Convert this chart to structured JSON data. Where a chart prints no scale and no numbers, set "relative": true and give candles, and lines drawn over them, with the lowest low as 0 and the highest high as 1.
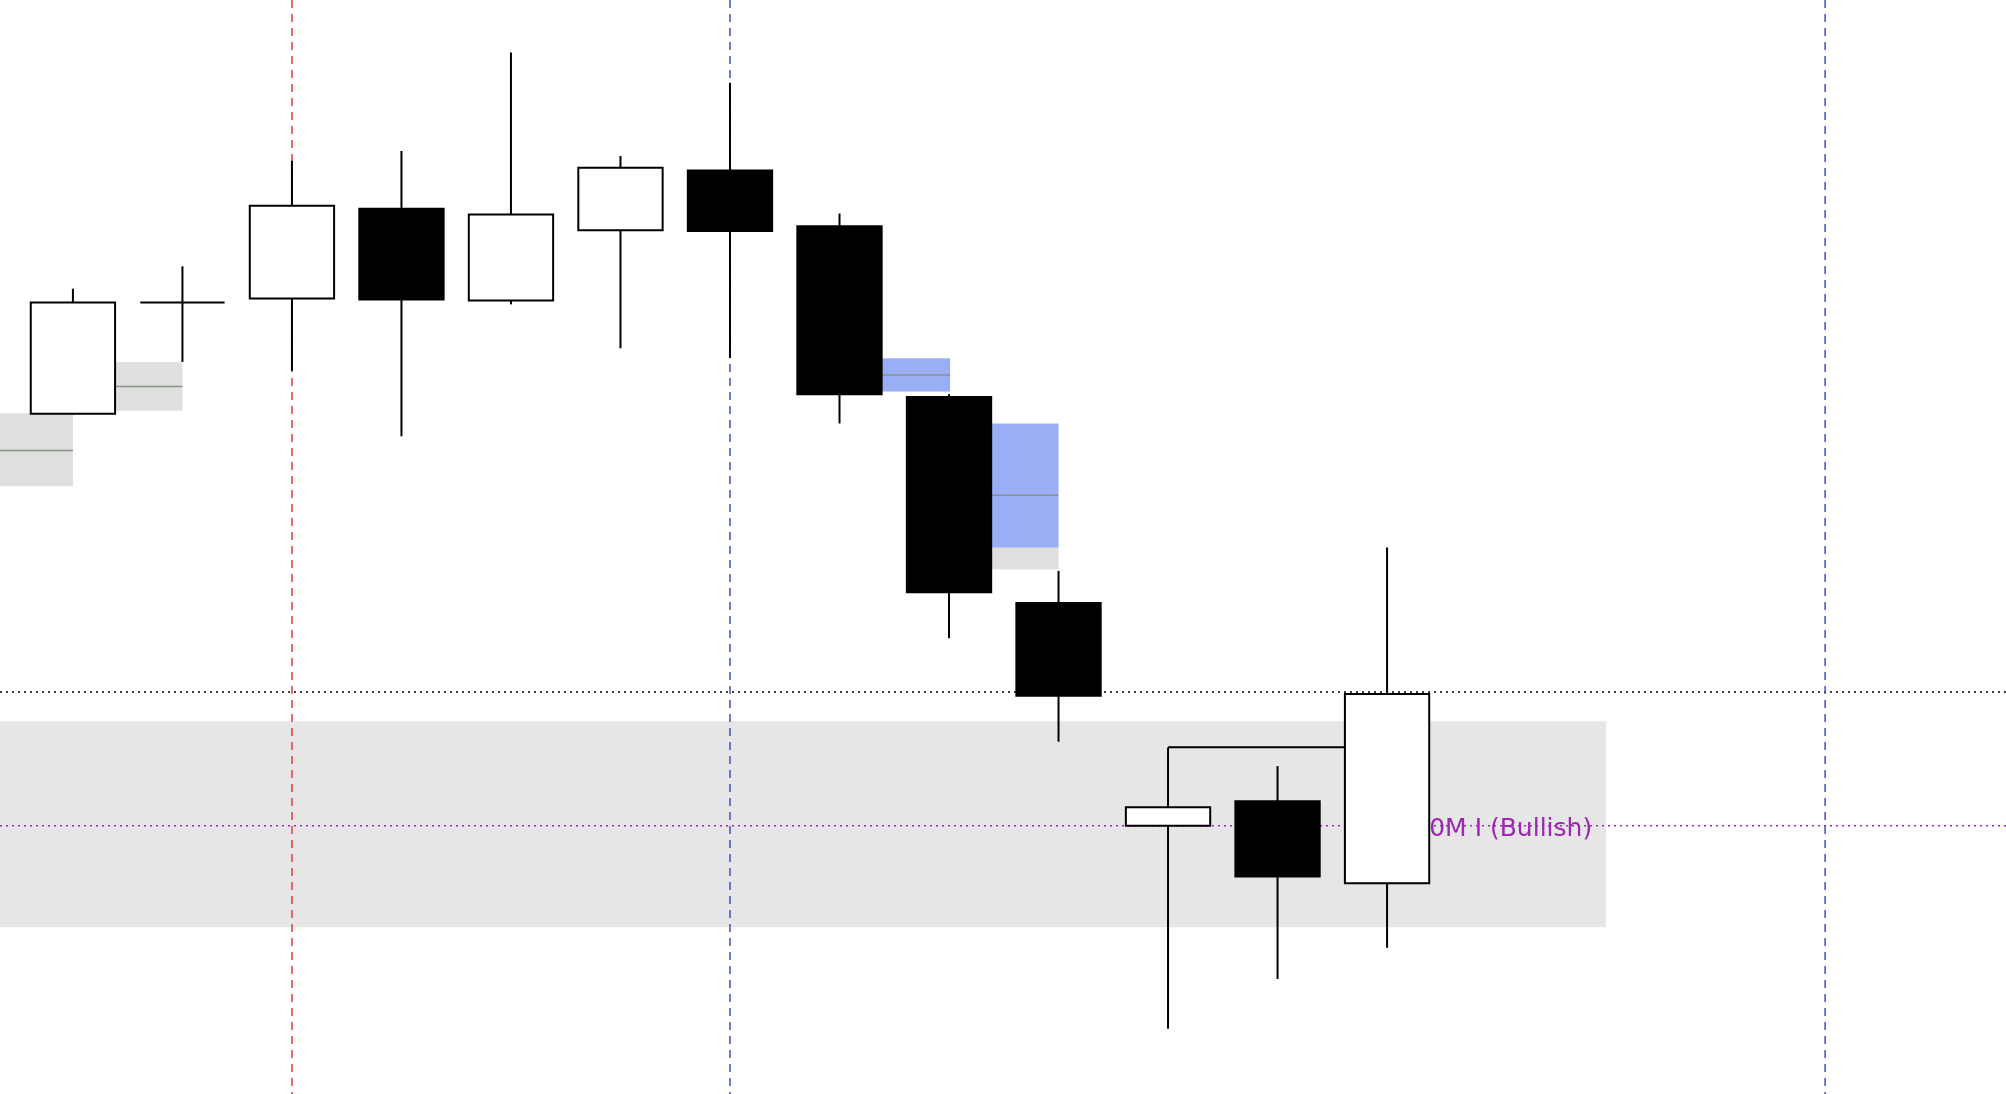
{
  "chart_data": {
    "type": "candlestick",
    "relative": true,
    "categories": [
      null,
      null,
      null,
      null,
      null,
      null,
      null,
      null,
      null,
      null,
      null,
      null,
      null
    ],
    "ohlc": [
      [
        0.63,
        0.758,
        0.63,
        0.744
      ],
      [
        0.744,
        0.781,
        0.683,
        0.744
      ],
      [
        0.748,
        0.889,
        0.674,
        0.843
      ],
      [
        0.84,
        0.899,
        0.607,
        0.747
      ],
      [
        0.746,
        1.0,
        0.742,
        0.834
      ],
      [
        0.818,
        0.894,
        0.697,
        0.882
      ],
      [
        0.879,
        0.969,
        0.687,
        0.817
      ],
      [
        0.822,
        0.835,
        0.62,
        0.65
      ],
      [
        0.647,
        0.65,
        0.4,
        0.447
      ],
      [
        0.436,
        0.469,
        0.294,
        0.341
      ],
      [
        0.208,
        0.288,
        0.0,
        0.227
      ],
      [
        0.233,
        0.269,
        0.051,
        0.156
      ],
      [
        0.149,
        0.493,
        0.083,
        0.343
      ]
    ],
    "ref_lines": [
      {
        "axis": "y",
        "value": 0.345,
        "color": "#000000",
        "line_style": "dotted"
      },
      {
        "axis": "y",
        "value": 0.208,
        "label": "0M I (Bullish)",
        "color": "#9c27b0",
        "line_style": "dotted"
      }
    ],
    "bands": [
      {
        "axis": "y",
        "from": 0.104,
        "to": 0.315,
        "color": "#e6e6e6"
      }
    ]
  }
}
